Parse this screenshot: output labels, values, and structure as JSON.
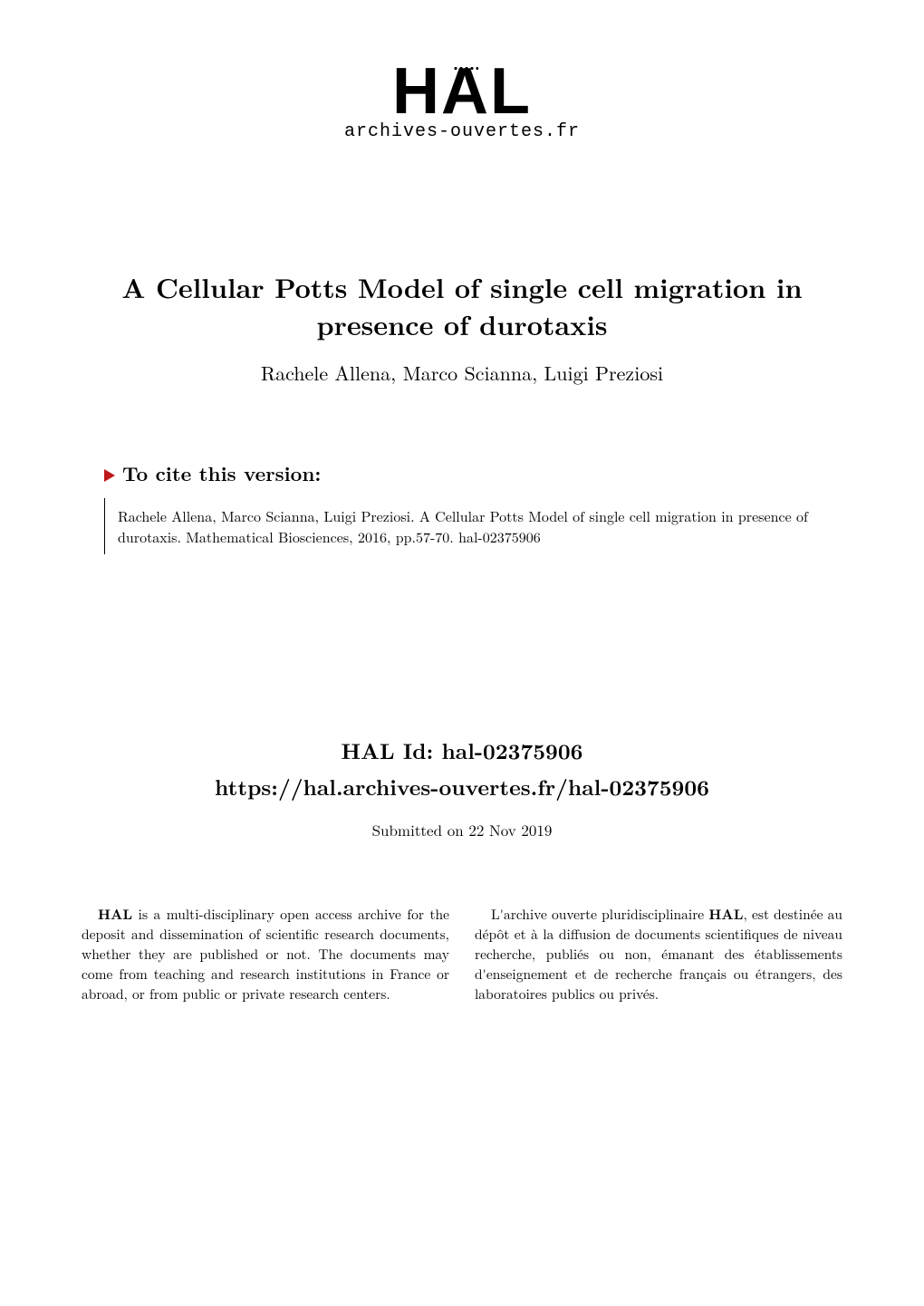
{
  "logo": {
    "text": "HAL",
    "subtext": "archives-ouvertes.fr"
  },
  "title": "A Cellular Potts Model of single cell migration in presence of durotaxis",
  "authors": "Rachele Allena, Marco Scianna, Luigi Preziosi",
  "cite": {
    "heading": "To cite this version:",
    "body": "Rachele Allena, Marco Scianna, Luigi Preziosi. A Cellular Potts Model of single cell migration in presence of durotaxis. Mathematical Biosciences, 2016, pp.57-70.  hal-02375906"
  },
  "halid": {
    "label": "HAL Id: hal-02375906",
    "url": "https://hal.archives-ouvertes.fr/hal-02375906",
    "submitted": "Submitted on 22 Nov 2019"
  },
  "footer": {
    "left": "HAL is a multi-disciplinary open access archive for the deposit and dissemination of scientific research documents, whether they are published or not. The documents may come from teaching and research institutions in France or abroad, or from public or private research centers.",
    "right": "L'archive ouverte pluridisciplinaire HAL, est destinée au dépôt et à la diffusion de documents scientifiques de niveau recherche, publiés ou non, émanant des établissements d'enseignement et de recherche français ou étrangers, des laboratoires publics ou privés."
  },
  "colors": {
    "accent": "#c01818",
    "text": "#000000",
    "background": "#ffffff"
  },
  "typography": {
    "title_fontsize": 30,
    "authors_fontsize": 22,
    "cite_heading_fontsize": 22,
    "cite_body_fontsize": 16,
    "halid_fontsize": 24,
    "submitted_fontsize": 17,
    "footer_fontsize": 15.5,
    "logo_fontsize": 72,
    "logo_sub_fontsize": 20
  }
}
